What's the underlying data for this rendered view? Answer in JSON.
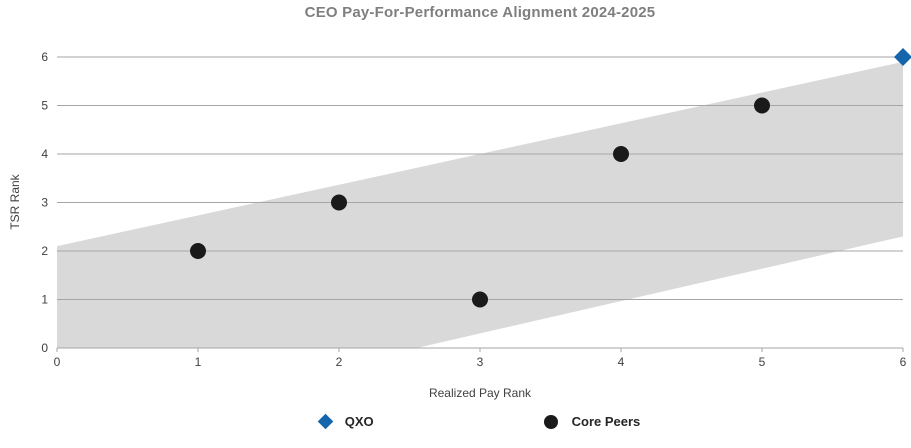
{
  "chart_data": {
    "type": "scatter",
    "title": "CEO Pay-For-Performance Alignment 2024-2025",
    "xlabel": "Realized Pay Rank",
    "ylabel": "TSR Rank",
    "xlim": [
      0,
      6
    ],
    "ylim": [
      0,
      6
    ],
    "xticks": [
      0,
      1,
      2,
      3,
      4,
      5,
      6
    ],
    "yticks": [
      0,
      1,
      2,
      3,
      4,
      5,
      6
    ],
    "grid": "horizontal",
    "legend_position": "bottom",
    "series": [
      {
        "name": "QXO",
        "marker": "diamond",
        "color": "#1565ad",
        "points": [
          [
            6,
            6
          ]
        ]
      },
      {
        "name": "Core Peers",
        "marker": "circle",
        "color": "#1a1a1a",
        "points": [
          [
            1,
            2
          ],
          [
            2,
            3
          ],
          [
            3,
            1
          ],
          [
            4,
            4
          ],
          [
            5,
            5
          ]
        ]
      }
    ],
    "band": {
      "name": "alignment-zone",
      "color": "#d9d9d9",
      "polygon": [
        [
          0,
          0
        ],
        [
          0,
          2.1
        ],
        [
          6,
          5.9
        ],
        [
          6,
          2.3
        ],
        [
          2.55,
          0
        ]
      ]
    }
  },
  "colors": {
    "title_text": "#7f7f7f",
    "axis_text": "#404040",
    "legend_text": "#262626",
    "gridline": "#a6a6a6",
    "background": "#ffffff"
  }
}
